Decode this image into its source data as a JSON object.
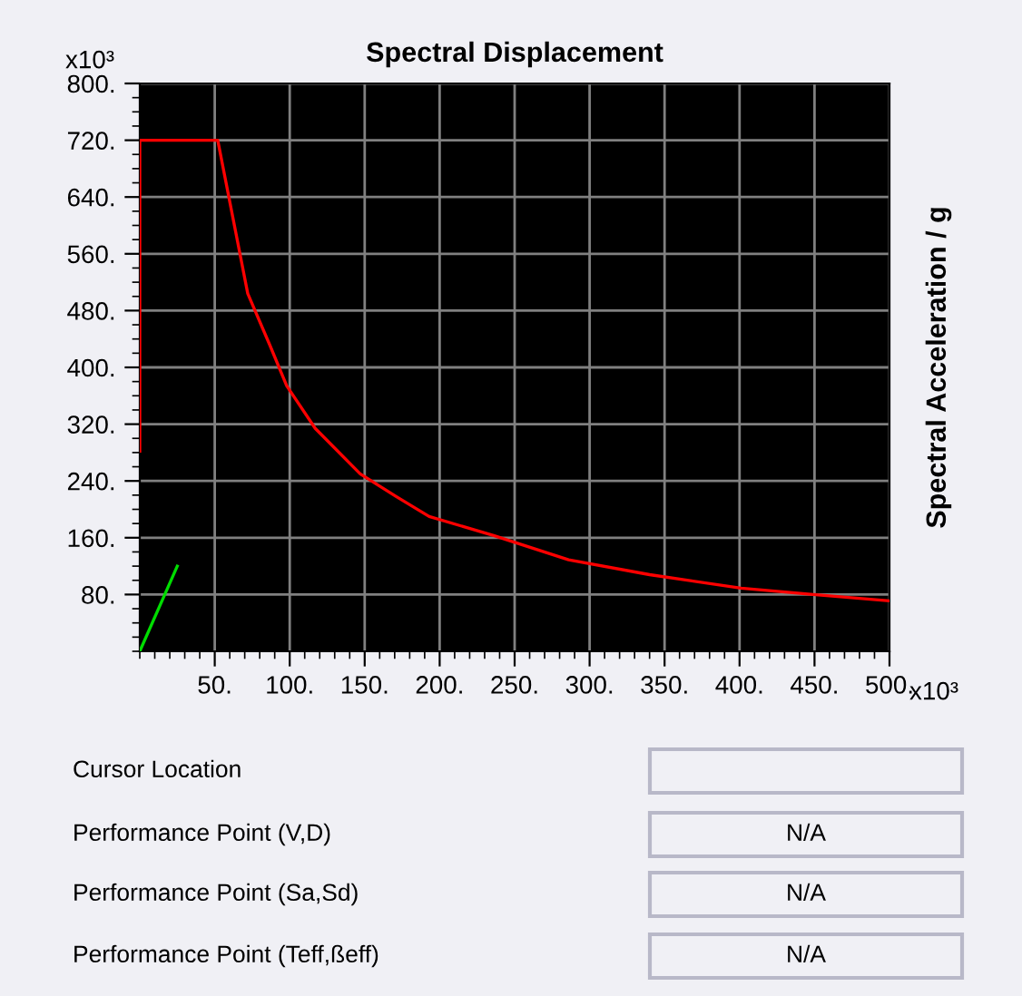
{
  "chart_data": {
    "type": "line",
    "title": "Spectral Displacement",
    "ylabel": "Spectral Acceleration / g",
    "xlim": [
      0,
      500
    ],
    "ylim": [
      0,
      800
    ],
    "xticks": [
      {
        "value": 50,
        "label": "50."
      },
      {
        "value": 100,
        "label": "100."
      },
      {
        "value": 150,
        "label": "150."
      },
      {
        "value": 200,
        "label": "200."
      },
      {
        "value": 250,
        "label": "250."
      },
      {
        "value": 300,
        "label": "300."
      },
      {
        "value": 350,
        "label": "350."
      },
      {
        "value": 400,
        "label": "400."
      },
      {
        "value": 450,
        "label": "450."
      },
      {
        "value": 500,
        "label": "500."
      }
    ],
    "yticks": [
      {
        "value": 80,
        "label": "80."
      },
      {
        "value": 160,
        "label": "160."
      },
      {
        "value": 240,
        "label": "240."
      },
      {
        "value": 320,
        "label": "320."
      },
      {
        "value": 400,
        "label": "400."
      },
      {
        "value": 480,
        "label": "480."
      },
      {
        "value": 560,
        "label": "560."
      },
      {
        "value": 640,
        "label": "640."
      },
      {
        "value": 720,
        "label": "720."
      },
      {
        "value": 800,
        "label": "800."
      }
    ],
    "grid": true,
    "legend": false,
    "marker": "none",
    "line_style": "solid",
    "series": [
      {
        "color": "#ff0000",
        "x": [
          0,
          0,
          52,
          72,
          87,
          98,
          117,
          147,
          171,
          193,
          236,
          286,
          340,
          401,
          449,
          500
        ],
        "values": [
          282,
          720,
          720,
          504,
          430,
          374,
          314,
          250,
          218,
          190,
          163,
          129,
          108,
          89,
          80,
          71
        ]
      },
      {
        "color": "#00dd00",
        "x": [
          0,
          25
        ],
        "values": [
          0,
          120
        ]
      }
    ],
    "annotations": [
      "x10³",
      "x10³",
      "Cursor Location",
      "Performance Point (V,D)",
      "N/A",
      "Performance Point (Sa,Sd)",
      "N/A",
      "Performance Point (Teff,ßeff)",
      "N/A"
    ]
  }
}
